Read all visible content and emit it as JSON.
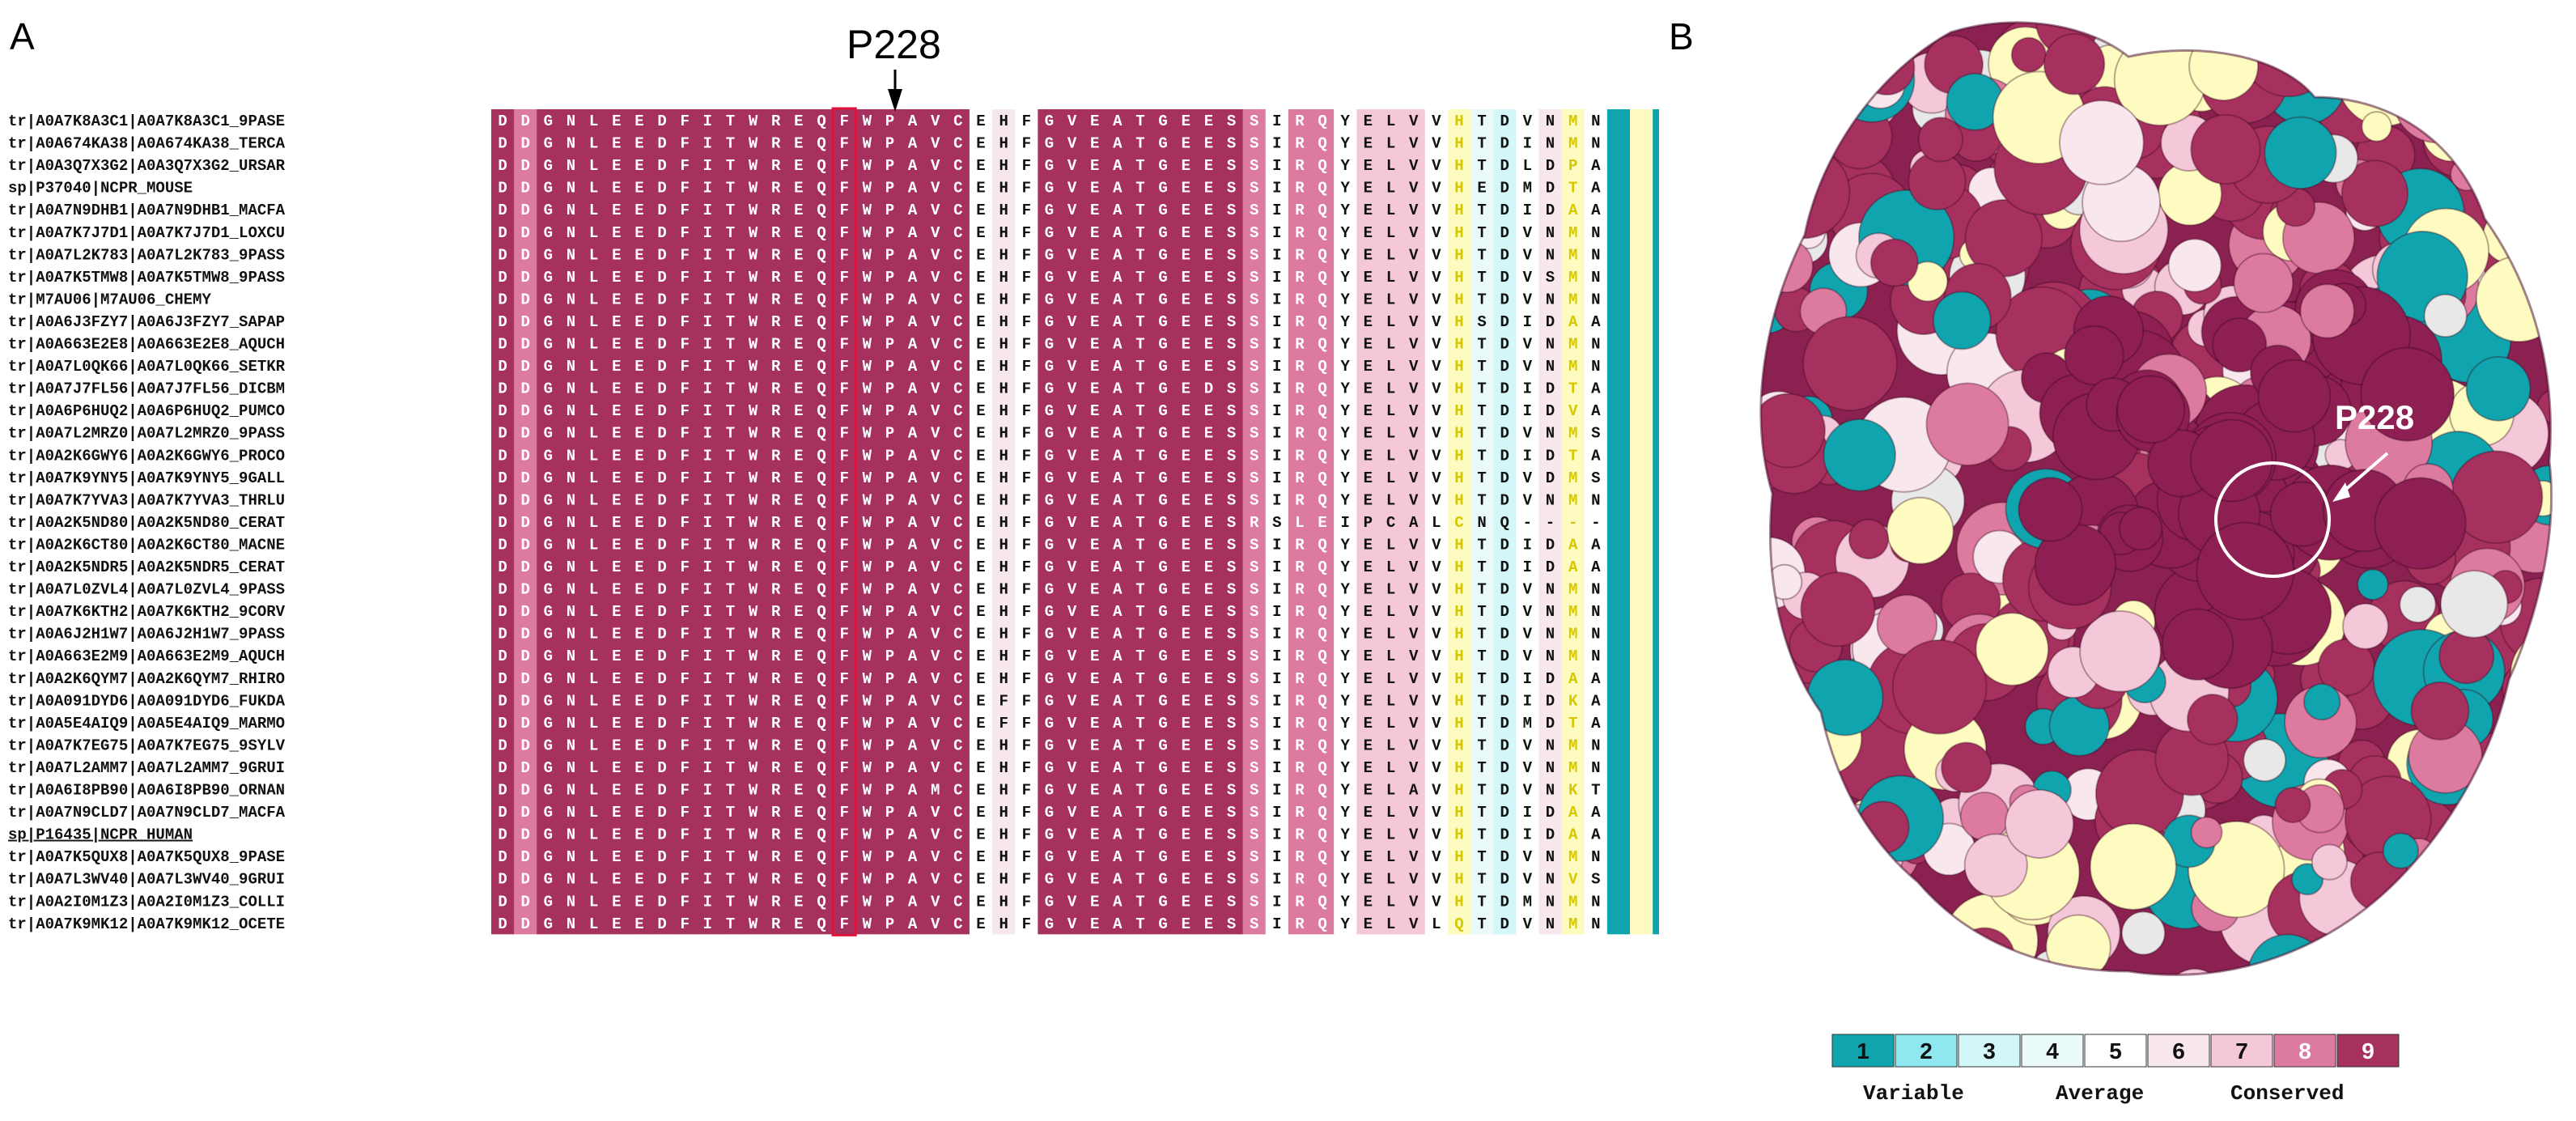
{
  "panels": {
    "a": "A",
    "b": "B"
  },
  "highlight": {
    "label": "P228",
    "column": 15
  },
  "structure": {
    "label": "P228"
  },
  "colors": {
    "g1": "#10a5ae",
    "g2": "#8fe8ef",
    "g3": "#d3f6f8",
    "g4": "#eafafb",
    "g5": "#ffffff",
    "g6": "#f9e7ee",
    "g7": "#f4c8d8",
    "g8": "#dd7aa0",
    "g9": "#a6305e",
    "gap": "#fdfbbf",
    "box": "#e0113a"
  },
  "column_grades": [
    9,
    8,
    9,
    9,
    9,
    9,
    9,
    9,
    9,
    9,
    9,
    9,
    9,
    9,
    9,
    9,
    9,
    9,
    9,
    9,
    9,
    5,
    6,
    5,
    9,
    9,
    9,
    9,
    9,
    9,
    9,
    9,
    9,
    8,
    5,
    8,
    8,
    5,
    7,
    7,
    7,
    5,
    "gap",
    4,
    3,
    5,
    6,
    "gap",
    5,
    1,
    "gap",
    1,
    4,
    2,
    1
  ],
  "legend": {
    "steps": [
      "1",
      "2",
      "3",
      "4",
      "5",
      "6",
      "7",
      "8",
      "9"
    ],
    "labels": [
      "Variable",
      "Average",
      "Conserved"
    ]
  },
  "sequences": [
    {
      "name": "tr|A0A7K8A3C1|A0A7K8A3C1_9PASE",
      "seq": "DDGNLEEDFITWREQFWPAVCEHFGVEATGEESSIRQYELVVHTDVNMN"
    },
    {
      "name": "tr|A0A674KA38|A0A674KA38_TERCA",
      "seq": "DDGNLEEDFITWREQFWPAVCEHFGVEATGEESSIRQYELVVHTDINMN"
    },
    {
      "name": "tr|A0A3Q7X3G2|A0A3Q7X3G2_URSAR",
      "seq": "DDGNLEEDFITWREQFWPAVCEHFGVEATGEESSIRQYELVVHTDLDPA"
    },
    {
      "name": "sp|P37040|NCPR_MOUSE",
      "seq": "DDGNLEEDFITWREQFWPAVCEHFGVEATGEESSIRQYELVVHEDMDTA"
    },
    {
      "name": "tr|A0A7N9DHB1|A0A7N9DHB1_MACFA",
      "seq": "DDGNLEEDFITWREQFWPAVCEHFGVEATGEESSIRQYELVVHTDIDAA"
    },
    {
      "name": "tr|A0A7K7J7D1|A0A7K7J7D1_LOXCU",
      "seq": "DDGNLEEDFITWREQFWPAVCEHFGVEATGEESSIRQYELVVHTDVNMN"
    },
    {
      "name": "tr|A0A7L2K783|A0A7L2K783_9PASS",
      "seq": "DDGNLEEDFITWREQFWPAVCEHFGVEATGEESSIRQYELVVHTDVNMN"
    },
    {
      "name": "tr|A0A7K5TMW8|A0A7K5TMW8_9PASS",
      "seq": "DDGNLEEDFITWREQFWPAVCEHFGVEATGEESSIRQYELVVHTDVSMN"
    },
    {
      "name": "tr|M7AU06|M7AU06_CHEMY",
      "seq": "DDGNLEEDFITWREQFWPAVCEHFGVEATGEESSIRQYELVVHTDVNMN"
    },
    {
      "name": "tr|A0A6J3FZY7|A0A6J3FZY7_SAPAP",
      "seq": "DDGNLEEDFITWREQFWPAVCEHFGVEATGEESSIRQYELVVHSDIDAA"
    },
    {
      "name": "tr|A0A663E2E8|A0A663E2E8_AQUCH",
      "seq": "DDGNLEEDFITWREQFWPAVCEHFGVEATGEESSIRQYELVVHTDVNMN"
    },
    {
      "name": "tr|A0A7L0QK66|A0A7L0QK66_SETKR",
      "seq": "DDGNLEEDFITWREQFWPAVCEHFGVEATGEESSIRQYELVVHTDVNMN"
    },
    {
      "name": "tr|A0A7J7FL56|A0A7J7FL56_DICBM",
      "seq": "DDGNLEEDFITWREQFWPAVCEHFGVEATGEDSSIRQYELVVHTDIDTA"
    },
    {
      "name": "tr|A0A6P6HUQ2|A0A6P6HUQ2_PUMCO",
      "seq": "DDGNLEEDFITWREQFWPAVCEHFGVEATGEESSIRQYELVVHTDIDVA"
    },
    {
      "name": "tr|A0A7L2MRZ0|A0A7L2MRZ0_9PASS",
      "seq": "DDGNLEEDFITWREQFWPAVCEHFGVEATGEESSIRQYELVVHTDVNMS"
    },
    {
      "name": "tr|A0A2K6GWY6|A0A2K6GWY6_PROCO",
      "seq": "DDGNLEEDFITWREQFWPAVCEHFGVEATGEESSIRQYELVVHTDIDTA"
    },
    {
      "name": "tr|A0A7K9YNY5|A0A7K9YNY5_9GALL",
      "seq": "DDGNLEEDFITWREQFWPAVCEHFGVEATGEESSIRQYELVVHTDVDMS"
    },
    {
      "name": "tr|A0A7K7YVA3|A0A7K7YVA3_THRLU",
      "seq": "DDGNLEEDFITWREQFWPAVCEHFGVEATGEESSIRQYELVVHTDVNMN"
    },
    {
      "name": "tr|A0A2K5ND80|A0A2K5ND80_CERAT",
      "seq": "DDGNLEEDFITWREQFWPAVCEHFGVEATGEESRSLEIPCALCNQ----"
    },
    {
      "name": "tr|A0A2K6CT80|A0A2K6CT80_MACNE",
      "seq": "DDGNLEEDFITWREQFWPAVCEHFGVEATGEESSIRQYELVVHTDIDAA"
    },
    {
      "name": "tr|A0A2K5NDR5|A0A2K5NDR5_CERAT",
      "seq": "DDGNLEEDFITWREQFWPAVCEHFGVEATGEESSIRQYELVVHTDIDAA"
    },
    {
      "name": "tr|A0A7L0ZVL4|A0A7L0ZVL4_9PASS",
      "seq": "DDGNLEEDFITWREQFWPAVCEHFGVEATGEESSIRQYELVVHTDVNMN"
    },
    {
      "name": "tr|A0A7K6KTH2|A0A7K6KTH2_9CORV",
      "seq": "DDGNLEEDFITWREQFWPAVCEHFGVEATGEESSIRQYELVVHTDVNMN"
    },
    {
      "name": "tr|A0A6J2H1W7|A0A6J2H1W7_9PASS",
      "seq": "DDGNLEEDFITWREQFWPAVCEHFGVEATGEESSIRQYELVVHTDVNMN"
    },
    {
      "name": "tr|A0A663E2M9|A0A663E2M9_AQUCH",
      "seq": "DDGNLEEDFITWREQFWPAVCEHFGVEATGEESSIRQYELVVHTDVNMN"
    },
    {
      "name": "tr|A0A2K6QYM7|A0A2K6QYM7_RHIRO",
      "seq": "DDGNLEEDFITWREQFWPAVCEHFGVEATGEESSIRQYELVVHTDIDAA"
    },
    {
      "name": "tr|A0A091DYD6|A0A091DYD6_FUKDA",
      "seq": "DDGNLEEDFITWREQFWPAVCEFFGVEATGEESSIRQYELVVHTDIDKA"
    },
    {
      "name": "tr|A0A5E4AIQ9|A0A5E4AIQ9_MARMO",
      "seq": "DDGNLEEDFITWREQFWPAVCEFFGVEATGEESSIRQYELVVHTDMDTA"
    },
    {
      "name": "tr|A0A7K7EG75|A0A7K7EG75_9SYLV",
      "seq": "DDGNLEEDFITWREQFWPAVCEHFGVEATGEESSIRQYELVVHTDVNMN"
    },
    {
      "name": "tr|A0A7L2AMM7|A0A7L2AMM7_9GRUI",
      "seq": "DDGNLEEDFITWREQFWPAVCEHFGVEATGEESSIRQYELVVHTDVNMN"
    },
    {
      "name": "tr|A0A6I8PB90|A0A6I8PB90_ORNAN",
      "seq": "DDGNLEEDFITWREQFWPAMCEHFGVEATGEESSIRQYELAVHTDVNKT"
    },
    {
      "name": "tr|A0A7N9CLD7|A0A7N9CLD7_MACFA",
      "seq": "DDGNLEEDFITWREQFWPAVCEHFGVEATGEESSIRQYELVVHTDIDAA"
    },
    {
      "name": "sp|P16435|NCPR_HUMAN",
      "seq": "DDGNLEEDFITWREQFWPAVCEHFGVEATGEESSIRQYELVVHTDIDAA",
      "underline": true
    },
    {
      "name": "tr|A0A7K5QUX8|A0A7K5QUX8_9PASE",
      "seq": "DDGNLEEDFITWREQFWPAVCEHFGVEATGEESSIRQYELVVHTDVNMN"
    },
    {
      "name": "tr|A0A7L3WV40|A0A7L3WV40_9GRUI",
      "seq": "DDGNLEEDFITWREQFWPAVCEHFGVEATGEESSIRQYELVVHTDVNVS"
    },
    {
      "name": "tr|A0A2I0M1Z3|A0A2I0M1Z3_COLLI",
      "seq": "DDGNLEEDFITWREQFWPAVCEHFGVEATGEESSIRQYELVVHTDMNMN"
    },
    {
      "name": "tr|A0A7K9MK12|A0A7K9MK12_OCETE",
      "seq": "DDGNLEEDFITWREQFWPAVCEHFGVEATGEESSIRQYELVLQTDVNMN"
    }
  ]
}
